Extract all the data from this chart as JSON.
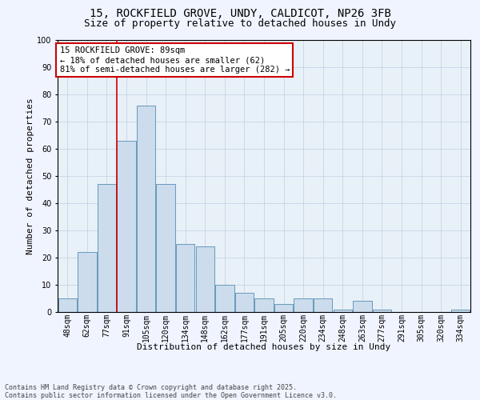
{
  "title_line1": "15, ROCKFIELD GROVE, UNDY, CALDICOT, NP26 3FB",
  "title_line2": "Size of property relative to detached houses in Undy",
  "xlabel": "Distribution of detached houses by size in Undy",
  "ylabel": "Number of detached properties",
  "categories": [
    "48sqm",
    "62sqm",
    "77sqm",
    "91sqm",
    "105sqm",
    "120sqm",
    "134sqm",
    "148sqm",
    "162sqm",
    "177sqm",
    "191sqm",
    "205sqm",
    "220sqm",
    "234sqm",
    "248sqm",
    "263sqm",
    "277sqm",
    "291sqm",
    "305sqm",
    "320sqm",
    "334sqm"
  ],
  "values": [
    5,
    22,
    47,
    63,
    76,
    47,
    25,
    24,
    10,
    7,
    5,
    3,
    5,
    5,
    1,
    4,
    1,
    0,
    0,
    0,
    1
  ],
  "bar_color": "#ccdcec",
  "bar_edge_color": "#6699bb",
  "vline_position": 2.5,
  "vline_color": "#cc0000",
  "annotation_text": "15 ROCKFIELD GROVE: 89sqm\n← 18% of detached houses are smaller (62)\n81% of semi-detached houses are larger (282) →",
  "annotation_box_edgecolor": "#cc0000",
  "annotation_box_facecolor": "#ffffff",
  "ylim": [
    0,
    100
  ],
  "yticks": [
    0,
    10,
    20,
    30,
    40,
    50,
    60,
    70,
    80,
    90,
    100
  ],
  "grid_color": "#c0cfe0",
  "plot_bg_color": "#e8f0f8",
  "fig_bg_color": "#f0f4ff",
  "title_fontsize": 10,
  "subtitle_fontsize": 9,
  "axis_label_fontsize": 8,
  "tick_fontsize": 7,
  "annotation_fontsize": 7.5,
  "footer_fontsize": 6,
  "footer_text": "Contains HM Land Registry data © Crown copyright and database right 2025.\nContains public sector information licensed under the Open Government Licence v3.0."
}
